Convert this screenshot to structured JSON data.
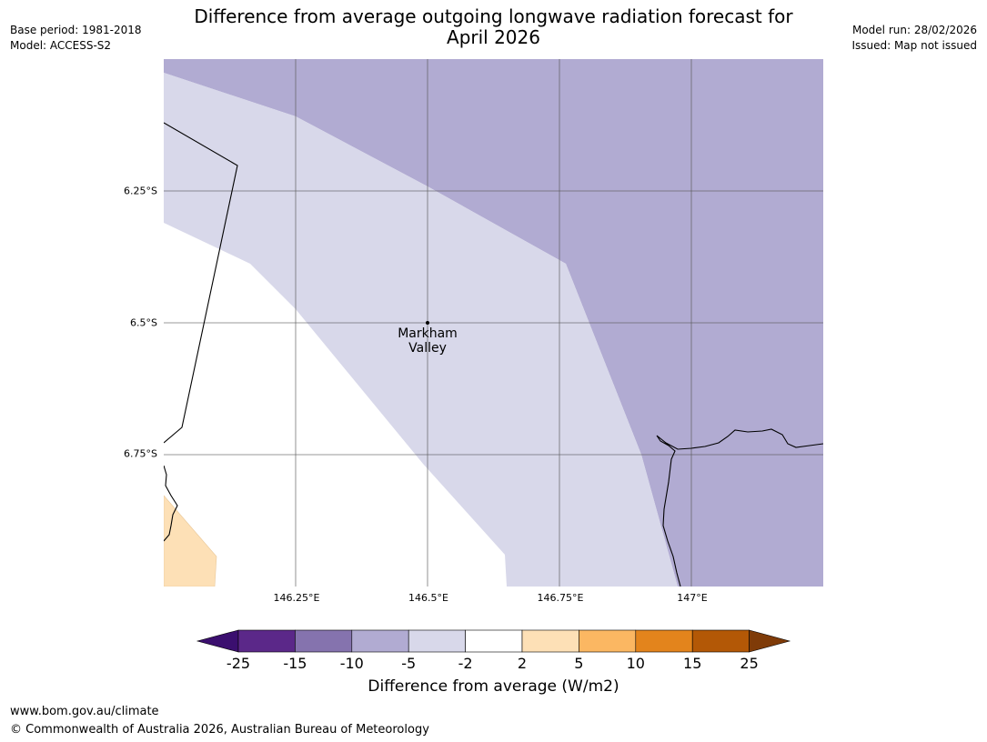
{
  "title_line1": "Difference from average outgoing longwave radiation forecast for",
  "title_line2": "April 2026",
  "meta_left": {
    "base_period": "Base period: 1981-2018",
    "model": "Model: ACCESS-S2"
  },
  "meta_right": {
    "model_run": "Model run: 28/02/2026",
    "issued": "Issued: Map not issued"
  },
  "map": {
    "latitude_ticks": [
      "6.25°S",
      "6.5°S",
      "6.75°S"
    ],
    "longitude_ticks": [
      "146.25°E",
      "146.5°E",
      "146.75°E",
      "147°E"
    ],
    "place": {
      "name_line1": "Markham",
      "name_line2": "Valley",
      "lat": -6.5,
      "lon": 146.5
    }
  },
  "colorbar": {
    "ticks": [
      "-25",
      "-15",
      "-10",
      "-5",
      "-2",
      "2",
      "5",
      "10",
      "15",
      "25"
    ],
    "colors": [
      "#3b0f6f",
      "#5b2889",
      "#8573ae",
      "#b1abd2",
      "#d8d8ea",
      "#ffffff",
      "#fde0b6",
      "#fbb762",
      "#e3841c",
      "#b35806",
      "#7f3b08"
    ],
    "label": "Difference from average (W/m2)"
  },
  "footer": {
    "url": "www.bom.gov.au/climate",
    "copyright": "© Commonwealth of Australia 2026, Australian Bureau of Meteorology"
  }
}
